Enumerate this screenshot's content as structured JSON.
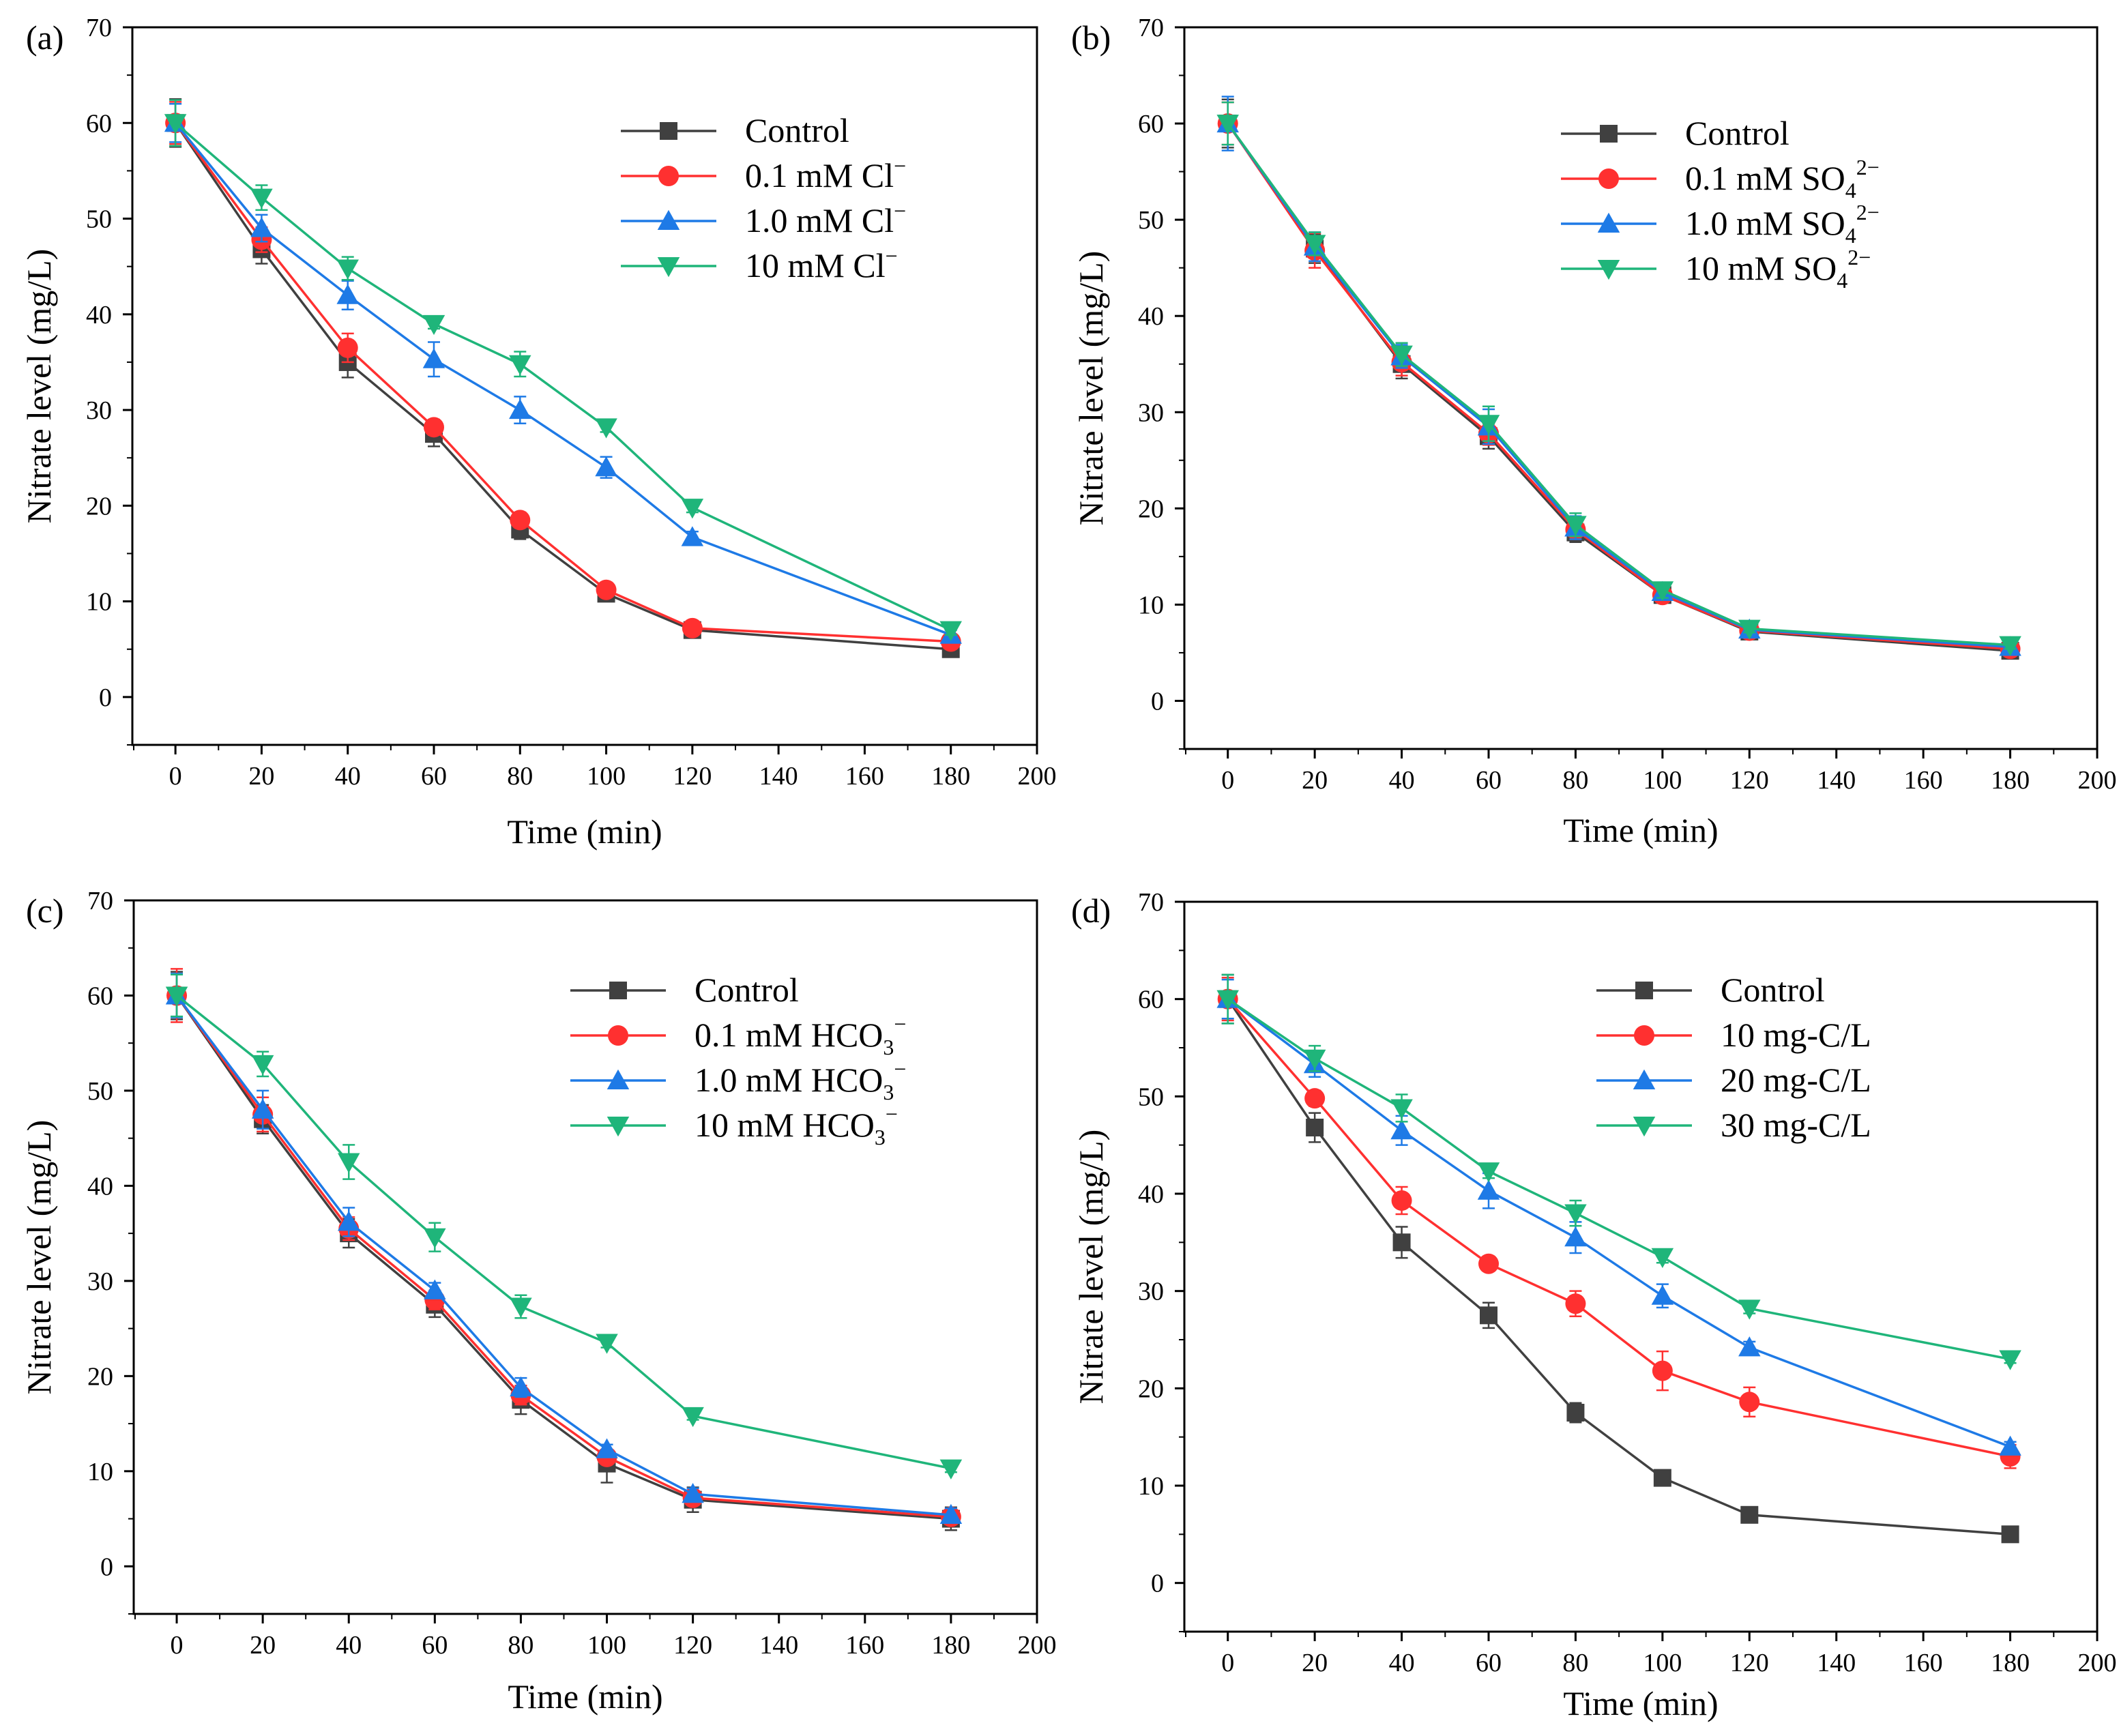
{
  "figure": {
    "colors": {
      "Control": "#404040",
      "s1": "#ff3030",
      "s2": "#1e7ae6",
      "s3": "#1fb57a"
    }
  },
  "chart_data": [
    {
      "panel_label": "(a)",
      "type": "line",
      "xlabel": "Time (min)",
      "ylabel": "Nitrate level (mg/L)",
      "xlim": [
        -10,
        200
      ],
      "ylim": [
        -5,
        70
      ],
      "xticks": [
        0,
        20,
        40,
        60,
        80,
        100,
        120,
        140,
        160,
        180,
        200
      ],
      "yticks": [
        0,
        10,
        20,
        30,
        40,
        50,
        60,
        70
      ],
      "grid": false,
      "legend_position": "top-right",
      "x": [
        0,
        20,
        40,
        60,
        80,
        100,
        120,
        180
      ],
      "series": [
        {
          "name": "Control",
          "marker": "square",
          "color": "#404040",
          "label_main": "Control",
          "label_sub": "",
          "label_sup": "",
          "values": [
            60,
            46.8,
            35.0,
            27.5,
            17.5,
            10.8,
            7.0,
            5.0
          ],
          "errors": [
            2.5,
            1.5,
            1.6,
            1.3,
            1.0,
            0.5,
            0.5,
            0.4
          ]
        },
        {
          "name": "0.1 mM Cl−",
          "marker": "circle",
          "color": "#ff3030",
          "label_main": "0.1 mM Cl",
          "label_sub": "",
          "label_sup": "−",
          "values": [
            60,
            47.8,
            36.5,
            28.2,
            18.5,
            11.2,
            7.2,
            5.8
          ],
          "errors": [
            2.2,
            1.3,
            1.5,
            0.8,
            0.8,
            0.5,
            0.4,
            0.4
          ]
        },
        {
          "name": "1.0 mM Cl−",
          "marker": "triangle-up",
          "color": "#1e7ae6",
          "label_main": "1.0 mM Cl",
          "label_sub": "",
          "label_sup": "−",
          "values": [
            60,
            49.0,
            42.0,
            35.3,
            30.0,
            24.0,
            16.7,
            6.5
          ],
          "errors": [
            2.0,
            1.4,
            1.5,
            1.8,
            1.4,
            1.1,
            0.6,
            0.5
          ]
        },
        {
          "name": "10 mM Cl−",
          "marker": "triangle-down",
          "color": "#1fb57a",
          "label_main": "10 mM Cl",
          "label_sub": "",
          "label_sup": "−",
          "values": [
            60,
            52.2,
            44.8,
            39.0,
            34.8,
            28.2,
            19.8,
            7.0
          ],
          "errors": [
            2.4,
            1.3,
            1.2,
            0.5,
            1.3,
            0.5,
            0.5,
            0.5
          ]
        }
      ]
    },
    {
      "panel_label": "(b)",
      "type": "line",
      "xlabel": "Time (min)",
      "ylabel": "Nitrate level (mg/L)",
      "xlim": [
        -10,
        200
      ],
      "ylim": [
        -5,
        70
      ],
      "xticks": [
        0,
        20,
        40,
        60,
        80,
        100,
        120,
        140,
        160,
        180,
        200
      ],
      "yticks": [
        0,
        10,
        20,
        30,
        40,
        50,
        60,
        70
      ],
      "grid": false,
      "legend_position": "top-right",
      "x": [
        0,
        20,
        40,
        60,
        80,
        100,
        120,
        180
      ],
      "series": [
        {
          "name": "Control",
          "marker": "square",
          "color": "#404040",
          "label_main": "Control",
          "label_sub": "",
          "label_sup": "",
          "values": [
            60,
            47.0,
            35.0,
            27.5,
            17.5,
            11.0,
            7.2,
            5.2
          ],
          "errors": [
            2.5,
            1.5,
            1.5,
            1.3,
            1.0,
            0.6,
            0.4,
            0.4
          ]
        },
        {
          "name": "0.1 mM SO42−",
          "marker": "circle",
          "color": "#ff3030",
          "label_main": "0.1 mM SO",
          "label_sub": "4",
          "label_sup": "2−",
          "values": [
            60,
            46.8,
            35.2,
            27.8,
            17.8,
            11.0,
            7.3,
            5.4
          ],
          "errors": [
            2.2,
            1.8,
            1.4,
            1.2,
            1.0,
            0.6,
            0.4,
            0.4
          ]
        },
        {
          "name": "1.0 mM SO42−",
          "marker": "triangle-up",
          "color": "#1e7ae6",
          "label_main": "1.0 mM SO",
          "label_sub": "4",
          "label_sup": "2−",
          "values": [
            60,
            47.2,
            35.8,
            28.5,
            18.0,
            11.3,
            7.4,
            5.6
          ],
          "errors": [
            2.8,
            1.5,
            1.2,
            1.8,
            1.2,
            0.8,
            0.5,
            0.4
          ]
        },
        {
          "name": "10 mM SO42−",
          "marker": "triangle-down",
          "color": "#1fb57a",
          "label_main": "10 mM SO",
          "label_sub": "4",
          "label_sup": "2−",
          "values": [
            60,
            47.5,
            36.0,
            28.8,
            18.3,
            11.5,
            7.5,
            5.8
          ],
          "errors": [
            2.2,
            1.2,
            1.2,
            1.8,
            1.2,
            0.8,
            0.4,
            0.4
          ]
        }
      ]
    },
    {
      "panel_label": "(c)",
      "type": "line",
      "xlabel": "Time (min)",
      "ylabel": "Nitrate level (mg/L)",
      "xlim": [
        -10,
        200
      ],
      "ylim": [
        -5,
        70
      ],
      "xticks": [
        0,
        20,
        40,
        60,
        80,
        100,
        120,
        140,
        160,
        180,
        200
      ],
      "yticks": [
        0,
        10,
        20,
        30,
        40,
        50,
        60,
        70
      ],
      "grid": false,
      "legend_position": "top-right",
      "x": [
        0,
        20,
        40,
        60,
        80,
        100,
        120,
        180
      ],
      "series": [
        {
          "name": "Control",
          "marker": "square",
          "color": "#404040",
          "label_main": "Control",
          "label_sub": "",
          "label_sup": "",
          "values": [
            60,
            47.0,
            35.0,
            27.5,
            17.5,
            10.8,
            7.0,
            5.0
          ],
          "errors": [
            2.5,
            1.5,
            1.5,
            1.3,
            1.5,
            2.0,
            1.3,
            1.2
          ]
        },
        {
          "name": "0.1 mM HCO3−",
          "marker": "circle",
          "color": "#ff3030",
          "label_main": "0.1 mM HCO",
          "label_sub": "3",
          "label_sup": "−",
          "values": [
            60,
            47.5,
            35.5,
            28.0,
            18.0,
            11.5,
            7.2,
            5.2
          ],
          "errors": [
            2.8,
            1.8,
            1.2,
            1.0,
            1.0,
            0.6,
            0.5,
            0.5
          ]
        },
        {
          "name": "1.0 mM HCO3−",
          "marker": "triangle-up",
          "color": "#1e7ae6",
          "label_main": "1.0 mM HCO",
          "label_sub": "3",
          "label_sup": "−",
          "values": [
            60,
            48.0,
            36.2,
            29.0,
            18.8,
            12.3,
            7.6,
            5.4
          ],
          "errors": [
            2.3,
            2.0,
            1.5,
            0.8,
            1.0,
            0.5,
            0.6,
            0.7
          ]
        },
        {
          "name": "10 mM HCO3−",
          "marker": "triangle-down",
          "color": "#1fb57a",
          "label_main": "10 mM HCO",
          "label_sub": "3",
          "label_sup": "−",
          "values": [
            60,
            52.8,
            42.5,
            34.6,
            27.3,
            23.5,
            15.8,
            10.3
          ],
          "errors": [
            2.2,
            1.3,
            1.8,
            1.5,
            1.2,
            0.5,
            0.4,
            0.4
          ]
        }
      ]
    },
    {
      "panel_label": "(d)",
      "type": "line",
      "xlabel": "Time (min)",
      "ylabel": "Nitrate level (mg/L)",
      "xlim": [
        -10,
        200
      ],
      "ylim": [
        -5,
        70
      ],
      "xticks": [
        0,
        20,
        40,
        60,
        80,
        100,
        120,
        140,
        160,
        180,
        200
      ],
      "yticks": [
        0,
        10,
        20,
        30,
        40,
        50,
        60,
        70
      ],
      "grid": false,
      "legend_position": "top-right",
      "x": [
        0,
        20,
        40,
        60,
        80,
        100,
        120,
        180
      ],
      "series": [
        {
          "name": "Control",
          "marker": "square",
          "color": "#404040",
          "label_main": "Control",
          "label_sub": "",
          "label_sup": "",
          "values": [
            60,
            46.8,
            35.0,
            27.5,
            17.5,
            10.8,
            7.0,
            5.0
          ],
          "errors": [
            2.5,
            1.5,
            1.6,
            1.3,
            1.0,
            0.5,
            0.4,
            0.4
          ]
        },
        {
          "name": "10 mg-C/L",
          "marker": "circle",
          "color": "#ff3030",
          "label_main": "10 mg-C/L",
          "label_sub": "",
          "label_sup": "",
          "values": [
            60,
            49.8,
            39.3,
            32.8,
            28.7,
            21.8,
            18.6,
            13.0
          ],
          "errors": [
            2.2,
            0.8,
            1.4,
            0.7,
            1.3,
            2.0,
            1.5,
            1.2
          ]
        },
        {
          "name": "20 mg-C/L",
          "marker": "triangle-up",
          "color": "#1e7ae6",
          "label_main": "20 mg-C/L",
          "label_sub": "",
          "label_sup": "",
          "values": [
            60,
            53.3,
            46.5,
            40.3,
            35.5,
            29.5,
            24.2,
            14.0
          ],
          "errors": [
            2.0,
            1.3,
            1.5,
            1.8,
            1.6,
            1.2,
            0.6,
            0.5
          ]
        },
        {
          "name": "30 mg-C/L",
          "marker": "triangle-down",
          "color": "#1fb57a",
          "label_main": "30 mg-C/L",
          "label_sub": "",
          "label_sup": "",
          "values": [
            60,
            53.9,
            48.8,
            42.3,
            38.0,
            33.5,
            28.2,
            23.0
          ],
          "errors": [
            2.5,
            1.3,
            1.4,
            0.7,
            1.3,
            0.6,
            0.5,
            0.4
          ]
        }
      ]
    }
  ]
}
